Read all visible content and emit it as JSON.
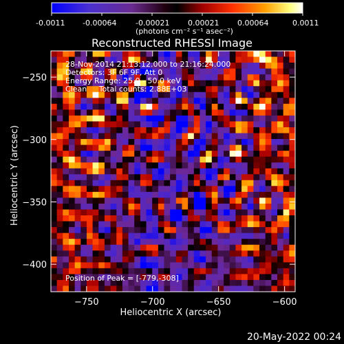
{
  "colorbar": {
    "ticks": [
      "-0.0011",
      "-0.00064",
      "-0.00021",
      "0.00021",
      "0.00064",
      "0.0011"
    ],
    "unit_label": "(photons cm⁻² s⁻¹ asec⁻²)"
  },
  "chart_data": {
    "type": "heatmap",
    "title": "Reconstructed RHESSI Image",
    "xlabel": "Heliocentric X (arcsec)",
    "ylabel": "Heliocentric Y (arcsec)",
    "xlim": [
      -777,
      -592
    ],
    "ylim": [
      -422,
      -229
    ],
    "xticks": [
      -750,
      -700,
      -650,
      -600
    ],
    "yticks": [
      -250,
      -300,
      -350,
      -400
    ],
    "xtick_labels": [
      "−750",
      "−700",
      "−650",
      "−600"
    ],
    "ytick_labels": [
      "−250",
      "−300",
      "−350",
      "−400"
    ],
    "annotations": [
      "28-Nov-2014 21:13:12.000 to 21:16:24.000",
      "Detectors: 3F 6F 9F, Att 0",
      "Energy Range: 25.0 - 50.0 keV",
      "Clean     Total counts: 2.88E+03"
    ],
    "peak_label": "Position of Peak = [-779,-308]",
    "peak": [
      -779,
      -308
    ],
    "value_range": [
      -0.0011,
      0.0011
    ],
    "colors": {
      "cmap": [
        "#0000ff",
        "#5a2ec8",
        "#7a2a9a",
        "#000000",
        "#c01010",
        "#ff5a00",
        "#ffc000",
        "#ffffff"
      ]
    }
  },
  "footer": {
    "timestamp": "20-May-2022 00:24"
  }
}
